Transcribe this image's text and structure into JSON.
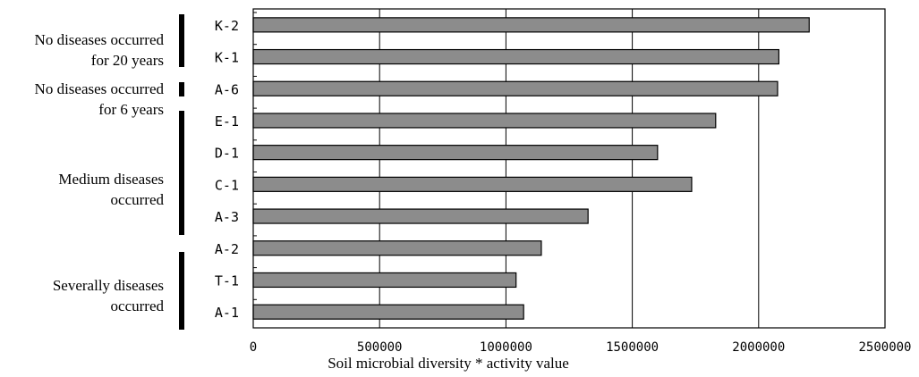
{
  "chart_data": {
    "type": "bar",
    "orientation": "horizontal",
    "categories": [
      "K-2",
      "K-1",
      "A-6",
      "E-1",
      "D-1",
      "C-1",
      "A-3",
      "A-2",
      "T-1",
      "A-1"
    ],
    "values": [
      2200000,
      2080000,
      2075000,
      1830000,
      1600000,
      1735000,
      1325000,
      1140000,
      1040000,
      1070000
    ],
    "xlabel": "Soil microbial diversity * activity value",
    "ylabel": "",
    "xlim": [
      0,
      2500000
    ],
    "xticks": [
      0,
      500000,
      1000000,
      1500000,
      2000000,
      2500000
    ],
    "xtick_labels": [
      "0",
      "500000",
      "1000000",
      "1500000",
      "2000000",
      "2500000"
    ],
    "grid": "vertical",
    "colors": {
      "bar": "#8c8c8c",
      "bar_edge": "#000000"
    },
    "groups": [
      {
        "label": "No diseases occurred\nfor 20 years",
        "categories": [
          "K-2",
          "K-1"
        ]
      },
      {
        "label": "No diseases occurred\nfor 6 years",
        "categories": [
          "A-6"
        ]
      },
      {
        "label": "Medium diseases\noccurred",
        "categories": [
          "E-1",
          "D-1",
          "C-1",
          "A-3"
        ]
      },
      {
        "label": "Severally diseases\noccurred",
        "categories": [
          "A-2",
          "T-1",
          "A-1"
        ]
      }
    ]
  }
}
